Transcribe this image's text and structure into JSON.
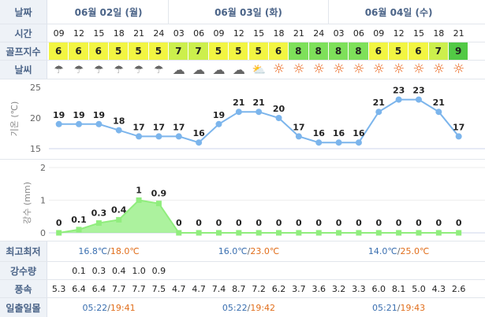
{
  "labels": {
    "date": "날짜",
    "time": "시간",
    "golf": "골프지수",
    "weather": "날씨",
    "minmax": "최고최저",
    "rain_amount": "강수량",
    "wind": "풍속",
    "sun": "일출일몰"
  },
  "days": [
    {
      "label": "06월 02일 (월)",
      "minmax": {
        "min": "16.8℃",
        "max": "18.0℃"
      },
      "sun": {
        "rise": "05:22",
        "set": "19:41"
      }
    },
    {
      "label": "06월 03일 (화)",
      "minmax": {
        "min": "16.0℃",
        "max": "23.0℃"
      },
      "sun": {
        "rise": "05:22",
        "set": "19:42"
      }
    },
    {
      "label": "06월 04일 (수)",
      "minmax": {
        "min": "14.0℃",
        "max": "25.0℃"
      },
      "sun": {
        "rise": "05:21",
        "set": "19:43"
      }
    }
  ],
  "slash": "/",
  "times": [
    "09",
    "12",
    "15",
    "18",
    "21",
    "24",
    "03",
    "06",
    "09",
    "12",
    "15",
    "18",
    "21",
    "24",
    "03",
    "06",
    "09",
    "12",
    "15",
    "18",
    "21"
  ],
  "golf": [
    "6",
    "6",
    "6",
    "5",
    "5",
    "5",
    "7",
    "7",
    "5",
    "5",
    "5",
    "6",
    "8",
    "8",
    "8",
    "8",
    "6",
    "5",
    "6",
    "7",
    "9"
  ],
  "golf_colors": {
    "5": "#f2f542",
    "6": "#f2f542",
    "7": "#ccef4c",
    "8": "#7ee05a",
    "9": "#52c945"
  },
  "weather": [
    "cloud-rain",
    "cloud-rain",
    "cloud-rain",
    "cloud-rain",
    "cloud-rain",
    "cloud-rain",
    "cloud",
    "cloud",
    "cloud",
    "cloud",
    "partly-sunny",
    "sun",
    "sun",
    "sun",
    "sun",
    "sun",
    "sun",
    "sun",
    "sun",
    "sun",
    "sun"
  ],
  "temp_axis": {
    "label": "기온 (℃)",
    "ticks": [
      "25",
      "20",
      "15"
    ]
  },
  "rain_axis": {
    "label": "강수 (mm)",
    "ticks": [
      "2",
      "1",
      "0"
    ]
  },
  "chart_data": [
    {
      "type": "line",
      "ylabel": "기온 (℃)",
      "ylim": [
        15,
        25
      ],
      "x": [
        "09",
        "12",
        "15",
        "18",
        "21",
        "24",
        "03",
        "06",
        "09",
        "12",
        "15",
        "18",
        "21",
        "24",
        "03",
        "06",
        "09",
        "12",
        "15",
        "18",
        "21"
      ],
      "values": [
        19,
        19,
        19,
        18,
        17,
        17,
        17,
        16,
        19,
        21,
        21,
        20,
        17,
        16,
        16,
        16,
        21,
        23,
        23,
        21,
        17
      ],
      "labels": [
        "19",
        "19",
        "19",
        "18",
        "17",
        "17",
        "17",
        "16",
        "19",
        "21",
        "21",
        "20",
        "17",
        "16",
        "16",
        "16",
        "21",
        "23",
        "23",
        "21",
        "17"
      ],
      "color": "#7cb5ec"
    },
    {
      "type": "area",
      "ylabel": "강수 (mm)",
      "ylim": [
        0,
        2
      ],
      "x": [
        "09",
        "12",
        "15",
        "18",
        "21",
        "24",
        "03",
        "06",
        "09",
        "12",
        "15",
        "18",
        "21",
        "24",
        "03",
        "06",
        "09",
        "12",
        "15",
        "18",
        "21"
      ],
      "values": [
        0,
        0.1,
        0.3,
        0.4,
        1,
        0.9,
        0,
        0,
        0,
        0,
        0,
        0,
        0,
        0,
        0,
        0,
        0,
        0,
        0,
        0,
        0
      ],
      "labels": [
        "0",
        "0.1",
        "0.3",
        "0.4",
        "1",
        "0.9",
        "0",
        "0",
        "0",
        "0",
        "0",
        "0",
        "0",
        "0",
        "0",
        "0",
        "0",
        "0",
        "0",
        "0",
        "0"
      ],
      "color": "#90ed7d"
    }
  ],
  "rain_amount": [
    "",
    "0.1",
    "0.3",
    "0.4",
    "1.0",
    "0.9",
    "",
    "",
    "",
    "",
    "",
    "",
    "",
    "",
    "",
    "",
    "",
    "",
    "",
    "",
    ""
  ],
  "wind": [
    "5.3",
    "6.4",
    "6.4",
    "7.7",
    "7.7",
    "7.5",
    "4.7",
    "4.7",
    "7.4",
    "8.7",
    "7.2",
    "6.2",
    "3.7",
    "3.6",
    "3.2",
    "3.3",
    "6.0",
    "8.1",
    "5.0",
    "4.3",
    "2.6"
  ]
}
